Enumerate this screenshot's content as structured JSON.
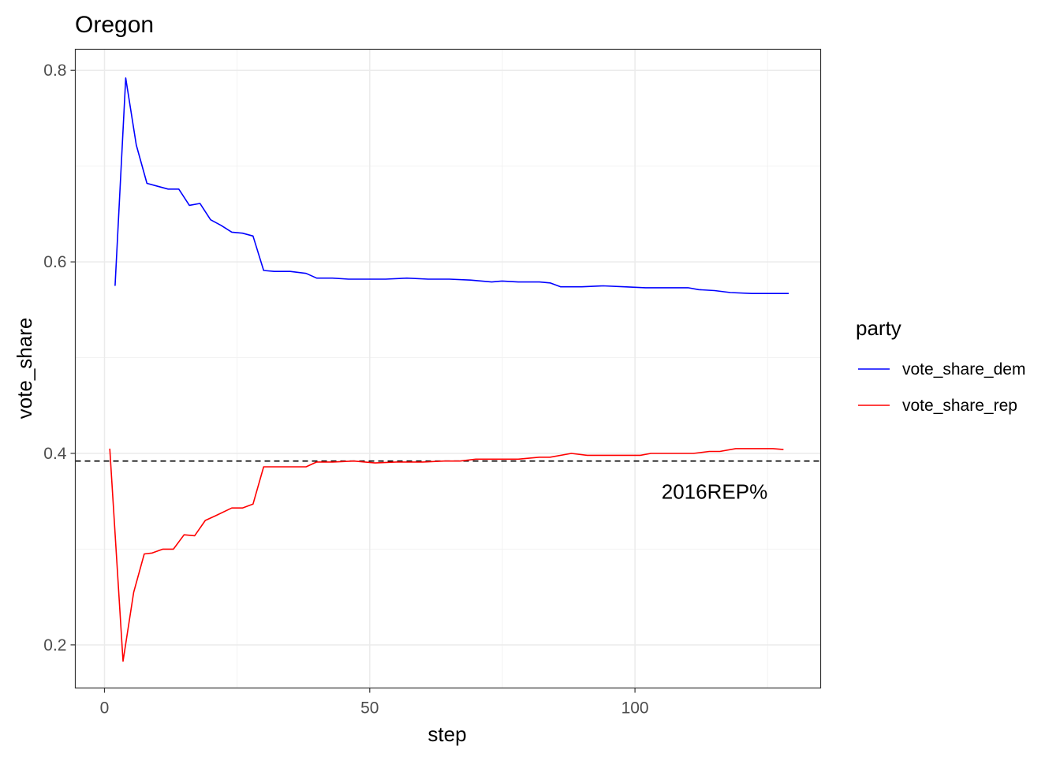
{
  "chart_data": {
    "type": "line",
    "title": "Oregon",
    "xlabel": "step",
    "ylabel": "vote_share",
    "xlim": [
      -5.5,
      135
    ],
    "ylim": [
      0.155,
      0.822
    ],
    "x_ticks": [
      0,
      50,
      100
    ],
    "y_ticks": [
      0.2,
      0.4,
      0.6,
      0.8
    ],
    "x_tick_labels": [
      "0",
      "50",
      "100"
    ],
    "y_tick_labels": [
      "0.2",
      "0.4",
      "0.6",
      "0.8"
    ],
    "grid": true,
    "legend": {
      "title": "party",
      "position": "right"
    },
    "reference_line": {
      "y": 0.392,
      "style": "dashed",
      "color": "#000000",
      "label": "2016REP%",
      "label_x": 115,
      "label_y": 0.36
    },
    "series": [
      {
        "name": "vote_share_dem",
        "color": "#0000ff",
        "points": [
          [
            2,
            0.575
          ],
          [
            4,
            0.792
          ],
          [
            6,
            0.722
          ],
          [
            8,
            0.682
          ],
          [
            10,
            0.679
          ],
          [
            12,
            0.676
          ],
          [
            14,
            0.676
          ],
          [
            16,
            0.659
          ],
          [
            18,
            0.661
          ],
          [
            20,
            0.644
          ],
          [
            22,
            0.638
          ],
          [
            24,
            0.631
          ],
          [
            26,
            0.63
          ],
          [
            28,
            0.627
          ],
          [
            30,
            0.591
          ],
          [
            32,
            0.59
          ],
          [
            35,
            0.59
          ],
          [
            38,
            0.588
          ],
          [
            40,
            0.583
          ],
          [
            43,
            0.583
          ],
          [
            46,
            0.582
          ],
          [
            50,
            0.582
          ],
          [
            53,
            0.582
          ],
          [
            57,
            0.583
          ],
          [
            61,
            0.582
          ],
          [
            65,
            0.582
          ],
          [
            69,
            0.581
          ],
          [
            73,
            0.579
          ],
          [
            75,
            0.58
          ],
          [
            78,
            0.579
          ],
          [
            82,
            0.579
          ],
          [
            84,
            0.578
          ],
          [
            86,
            0.574
          ],
          [
            90,
            0.574
          ],
          [
            94,
            0.575
          ],
          [
            98,
            0.574
          ],
          [
            102,
            0.573
          ],
          [
            106,
            0.573
          ],
          [
            110,
            0.573
          ],
          [
            112,
            0.571
          ],
          [
            115,
            0.57
          ],
          [
            118,
            0.568
          ],
          [
            122,
            0.567
          ],
          [
            126,
            0.567
          ],
          [
            129,
            0.567
          ]
        ]
      },
      {
        "name": "vote_share_rep",
        "color": "#ff0000",
        "points": [
          [
            1,
            0.405
          ],
          [
            3.5,
            0.183
          ],
          [
            5.5,
            0.255
          ],
          [
            7.5,
            0.295
          ],
          [
            9,
            0.296
          ],
          [
            11,
            0.3
          ],
          [
            13,
            0.3
          ],
          [
            15,
            0.315
          ],
          [
            17,
            0.314
          ],
          [
            19,
            0.33
          ],
          [
            21,
            0.335
          ],
          [
            24,
            0.343
          ],
          [
            26,
            0.343
          ],
          [
            28,
            0.347
          ],
          [
            30,
            0.386
          ],
          [
            34,
            0.386
          ],
          [
            38,
            0.386
          ],
          [
            40,
            0.391
          ],
          [
            43,
            0.391
          ],
          [
            47,
            0.392
          ],
          [
            51,
            0.39
          ],
          [
            55,
            0.391
          ],
          [
            60,
            0.391
          ],
          [
            64,
            0.392
          ],
          [
            67,
            0.392
          ],
          [
            70,
            0.394
          ],
          [
            74,
            0.394
          ],
          [
            78,
            0.394
          ],
          [
            82,
            0.396
          ],
          [
            84,
            0.396
          ],
          [
            88,
            0.4
          ],
          [
            91,
            0.398
          ],
          [
            94,
            0.398
          ],
          [
            98,
            0.398
          ],
          [
            101,
            0.398
          ],
          [
            103,
            0.4
          ],
          [
            107,
            0.4
          ],
          [
            111,
            0.4
          ],
          [
            114,
            0.402
          ],
          [
            116,
            0.402
          ],
          [
            119,
            0.405
          ],
          [
            122,
            0.405
          ],
          [
            126,
            0.405
          ],
          [
            128,
            0.404
          ]
        ]
      }
    ]
  }
}
